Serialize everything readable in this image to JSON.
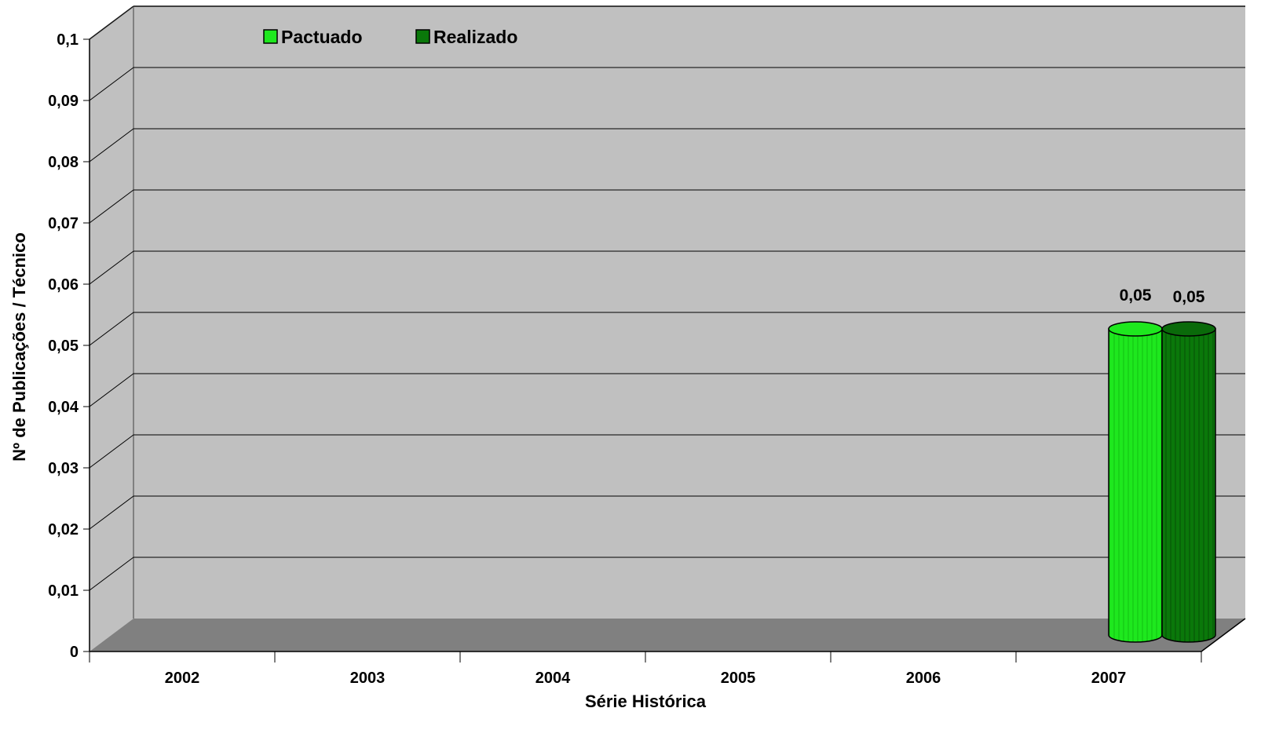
{
  "chart_data": {
    "type": "bar",
    "style": "3d-cylinder",
    "title": "",
    "xlabel": "Série Histórica",
    "ylabel": "Nº de Publicações / Técnico",
    "categories": [
      "2002",
      "2003",
      "2004",
      "2005",
      "2006",
      "2007"
    ],
    "ylim": [
      0,
      0.1
    ],
    "yticks": [
      "0",
      "0,01",
      "0,02",
      "0,03",
      "0,04",
      "0,05",
      "0,06",
      "0,07",
      "0,08",
      "0,09",
      "0,1"
    ],
    "grid": true,
    "legend_position": "top-left",
    "series": [
      {
        "name": "Pactuado",
        "values": [
          null,
          null,
          null,
          null,
          null,
          0.05
        ],
        "labels": [
          null,
          null,
          null,
          null,
          null,
          "0,05"
        ],
        "color": "#1ee81e"
      },
      {
        "name": "Realizado",
        "values": [
          null,
          null,
          null,
          null,
          null,
          0.05
        ],
        "labels": [
          null,
          null,
          null,
          null,
          null,
          "0,05"
        ],
        "color": "#0a780a"
      }
    ],
    "colors": {
      "back_wall": "#c0c0c0",
      "floor": "#808080",
      "grid_line": "#000000"
    }
  }
}
